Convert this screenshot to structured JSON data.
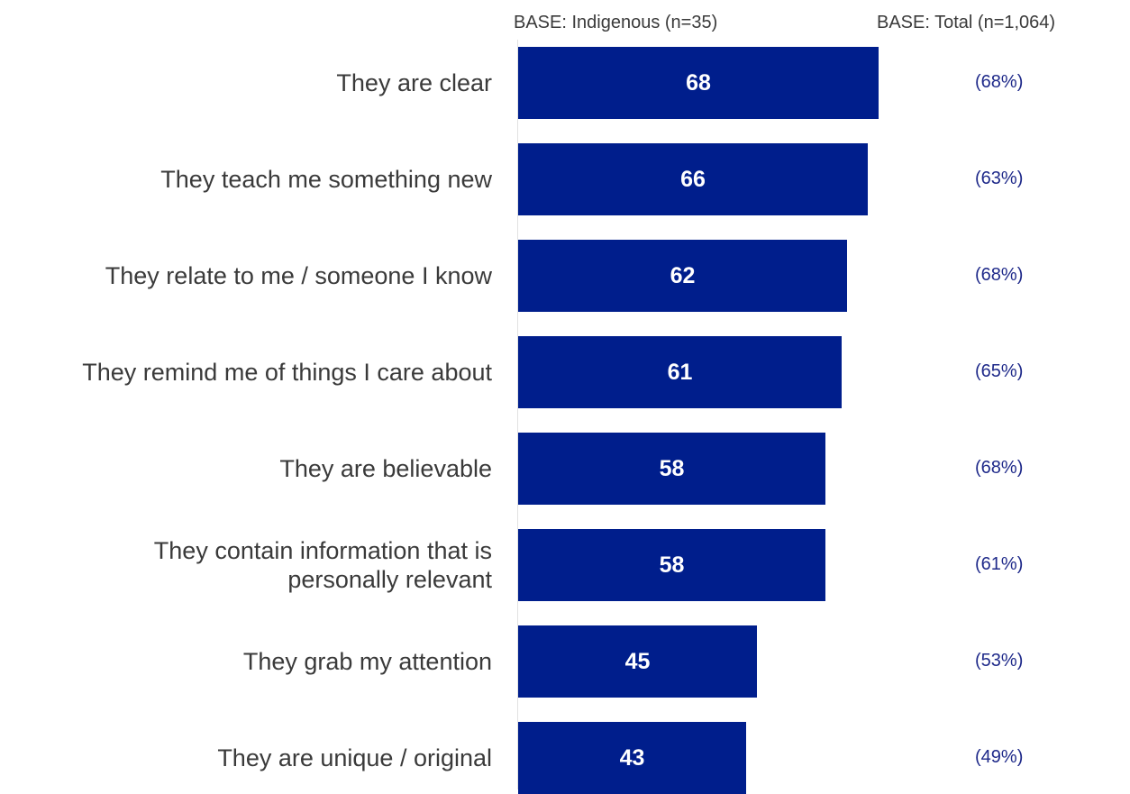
{
  "chart_data": {
    "type": "bar",
    "orientation": "horizontal",
    "bar_color": "#001e8c",
    "total_label_color": "#1f2a8a",
    "header_left": "BASE: Indigenous (n=35)",
    "header_right": "BASE: Total (n=1,064)",
    "categories": [
      "They are clear",
      "They teach me something new",
      "They relate to me / someone I know",
      "They remind me of things I care about",
      "They are believable",
      "They contain information that is personally relevant",
      "They grab my attention",
      "They are unique / original"
    ],
    "category_lines": [
      [
        "They are clear"
      ],
      [
        "They teach me something new"
      ],
      [
        "They relate to me / someone I know"
      ],
      [
        "They remind me of things I care about"
      ],
      [
        "They are believable"
      ],
      [
        "They contain information that is",
        "personally relevant"
      ],
      [
        "They grab my attention"
      ],
      [
        "They are unique / original"
      ]
    ],
    "series": [
      {
        "name": "BASE: Indigenous (n=35)",
        "values": [
          68,
          66,
          62,
          61,
          58,
          58,
          45,
          43
        ]
      },
      {
        "name": "BASE: Total (n=1,064)",
        "values": [
          68,
          63,
          68,
          65,
          68,
          61,
          53,
          49
        ],
        "labels": [
          "(68%)",
          "(63%)",
          "(68%)",
          "(65%)",
          "(68%)",
          "(61%)",
          "(53%)",
          "(49%)"
        ]
      }
    ],
    "xlim": [
      0,
      100
    ],
    "grid": false,
    "legend": "none"
  }
}
